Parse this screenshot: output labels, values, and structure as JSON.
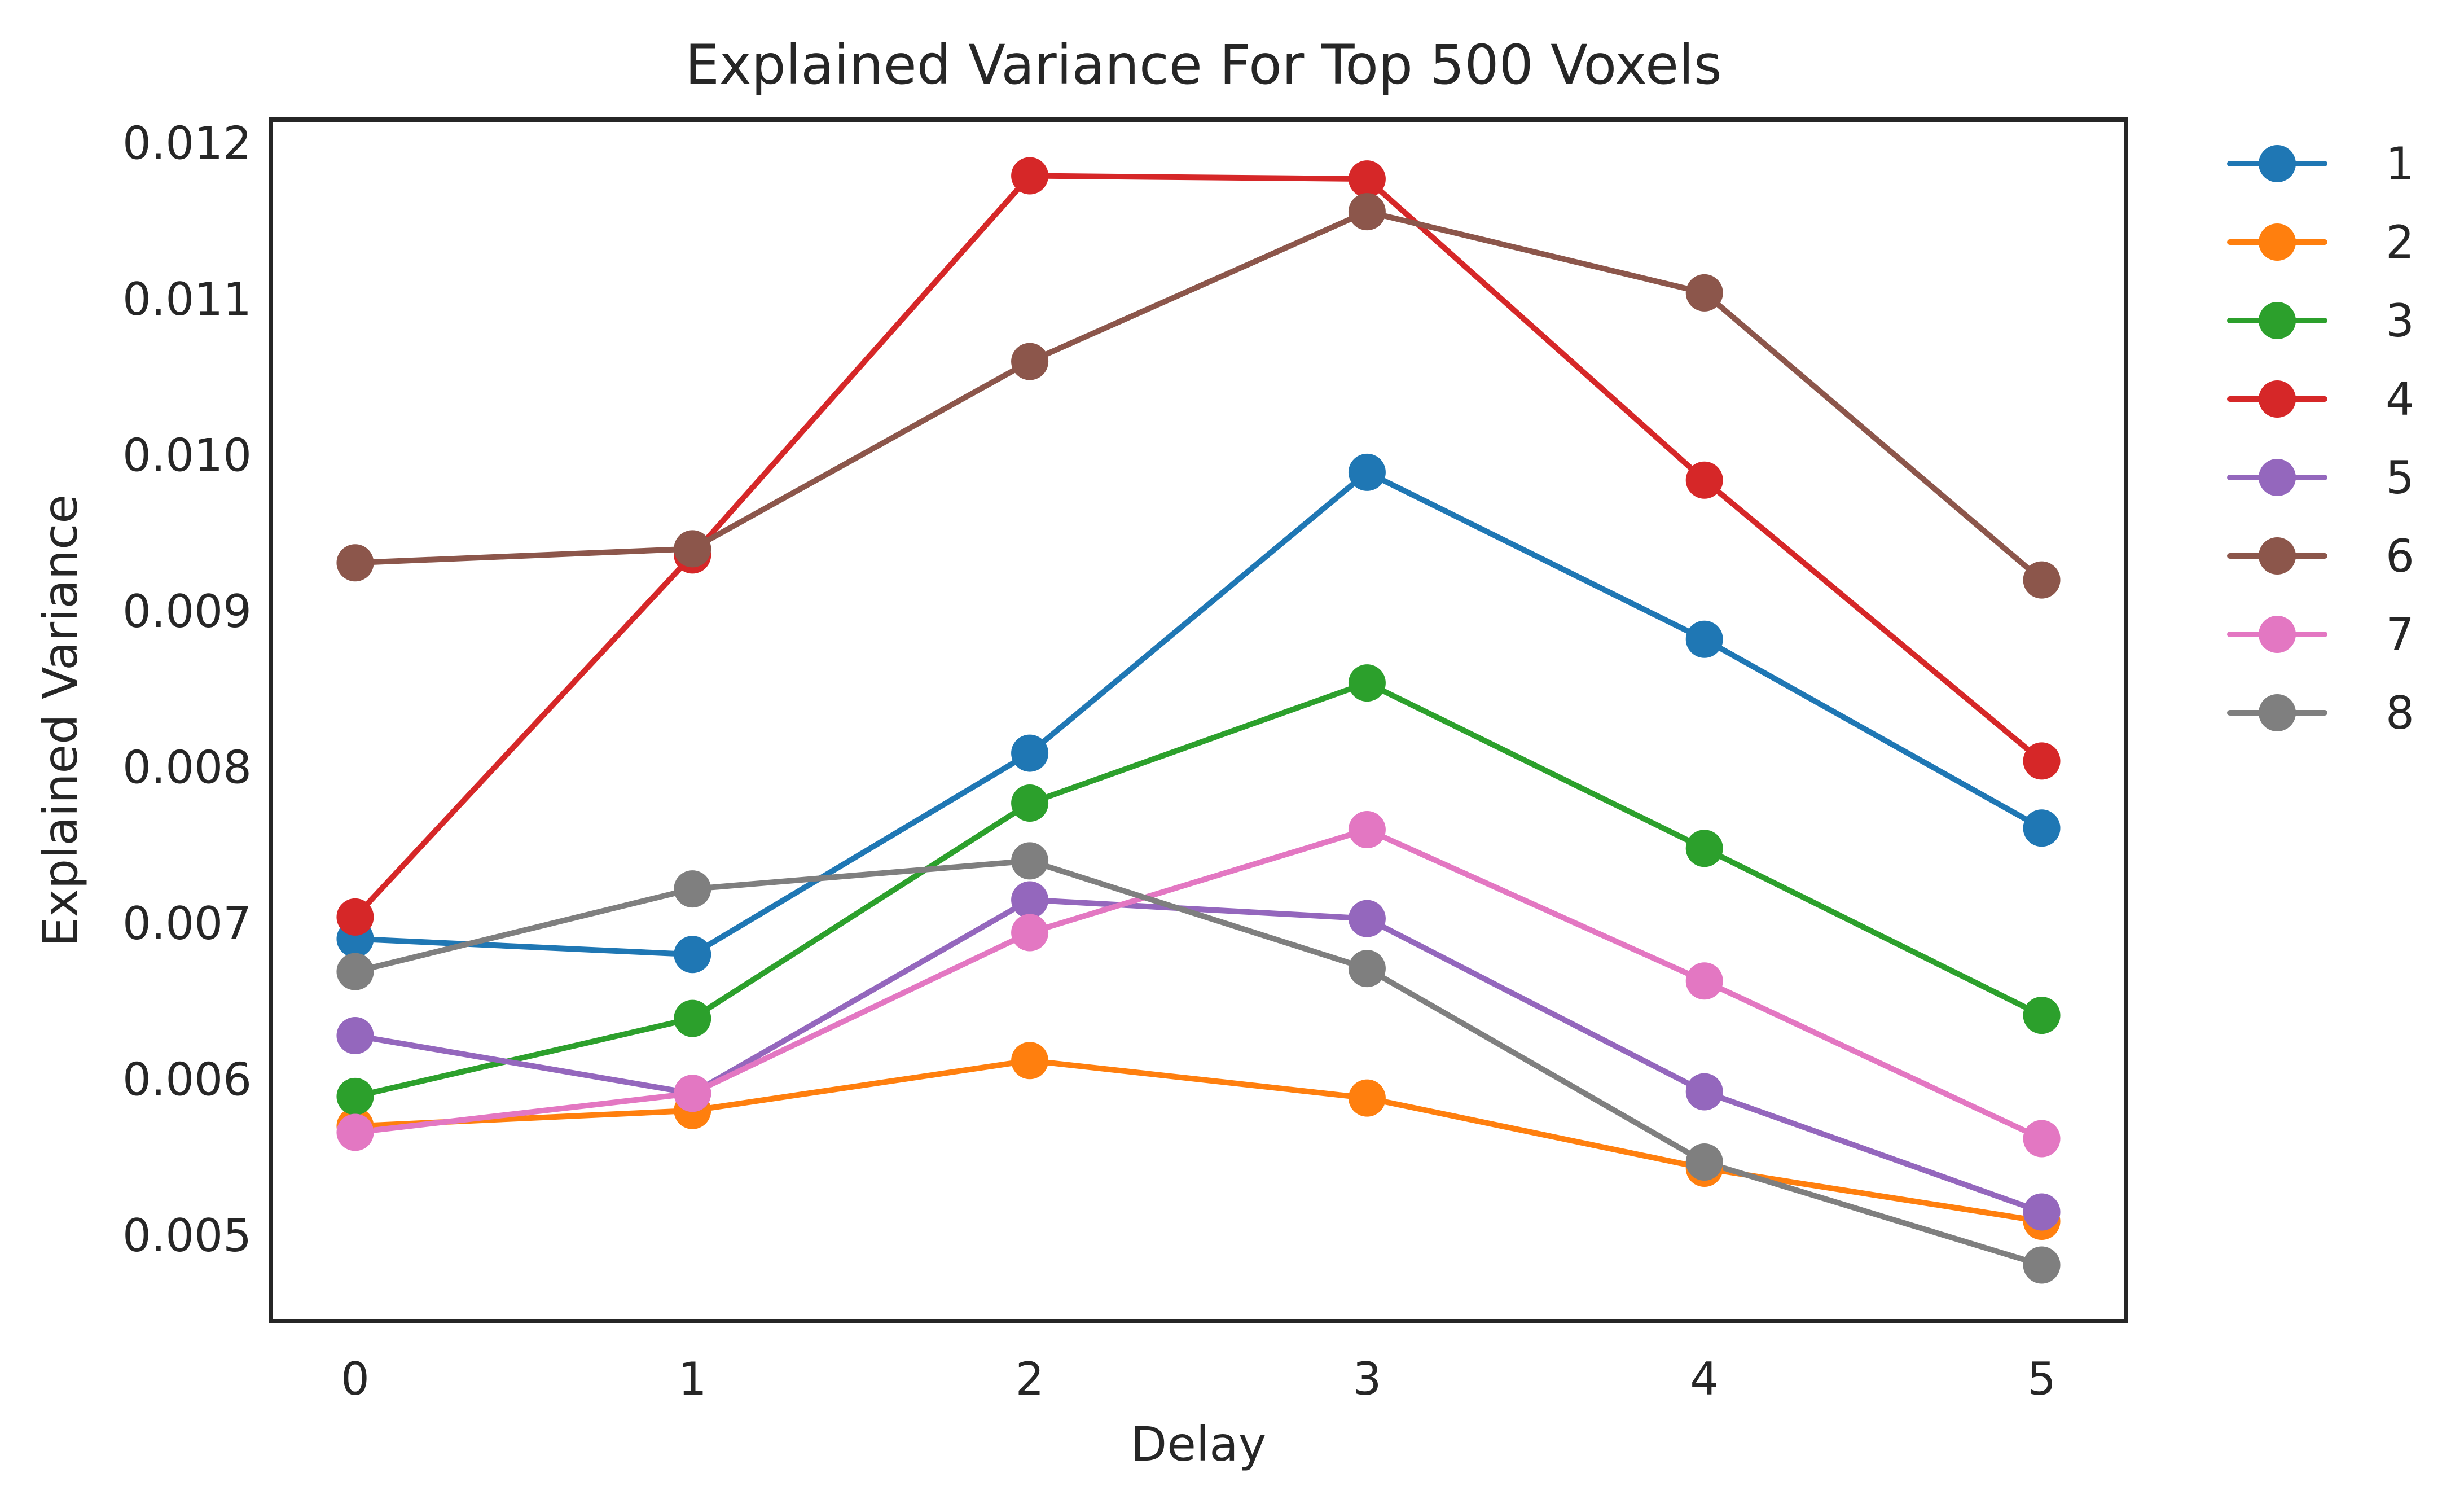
{
  "chart_data": {
    "type": "line",
    "title": "Explained Variance For Top 500 Voxels",
    "xlabel": "Delay",
    "ylabel": "Explained Variance",
    "x": [
      0,
      1,
      2,
      3,
      4,
      5
    ],
    "xlim": [
      -0.25,
      5.25
    ],
    "ylim": [
      0.00445,
      0.01215
    ],
    "xticks": [
      "0",
      "1",
      "2",
      "3",
      "4",
      "5"
    ],
    "xtick_values": [
      0,
      1,
      2,
      3,
      4,
      5
    ],
    "yticks": [
      "0.005",
      "0.006",
      "0.007",
      "0.008",
      "0.009",
      "0.010",
      "0.011",
      "0.012"
    ],
    "ytick_values": [
      0.005,
      0.006,
      0.007,
      0.008,
      0.009,
      0.01,
      0.011,
      0.012
    ],
    "grid": false,
    "legend_position": "outside-right",
    "series": [
      {
        "name": "1",
        "color": "#1f77b4",
        "values": [
          0.0069,
          0.0068,
          0.00809,
          0.00989,
          0.00882,
          0.00761
        ]
      },
      {
        "name": "2",
        "color": "#ff7f0e",
        "values": [
          0.0057,
          0.0058,
          0.00612,
          0.00588,
          0.00543,
          0.00509
        ]
      },
      {
        "name": "3",
        "color": "#2ca02c",
        "values": [
          0.00589,
          0.00639,
          0.00777,
          0.00854,
          0.00748,
          0.00641
        ]
      },
      {
        "name": "4",
        "color": "#d62728",
        "values": [
          0.00704,
          0.00936,
          0.01179,
          0.01177,
          0.00984,
          0.00804
        ]
      },
      {
        "name": "5",
        "color": "#9467bd",
        "values": [
          0.00628,
          0.00591,
          0.00715,
          0.00703,
          0.00592,
          0.00515
        ]
      },
      {
        "name": "6",
        "color": "#8c564b",
        "values": [
          0.00931,
          0.0094,
          0.0106,
          0.01156,
          0.01104,
          0.0092
        ]
      },
      {
        "name": "7",
        "color": "#e377c2",
        "values": [
          0.00566,
          0.00591,
          0.00694,
          0.0076,
          0.00663,
          0.00562
        ]
      },
      {
        "name": "8",
        "color": "#7f7f7f",
        "values": [
          0.00669,
          0.00722,
          0.0074,
          0.00671,
          0.00547,
          0.00481
        ]
      }
    ]
  }
}
